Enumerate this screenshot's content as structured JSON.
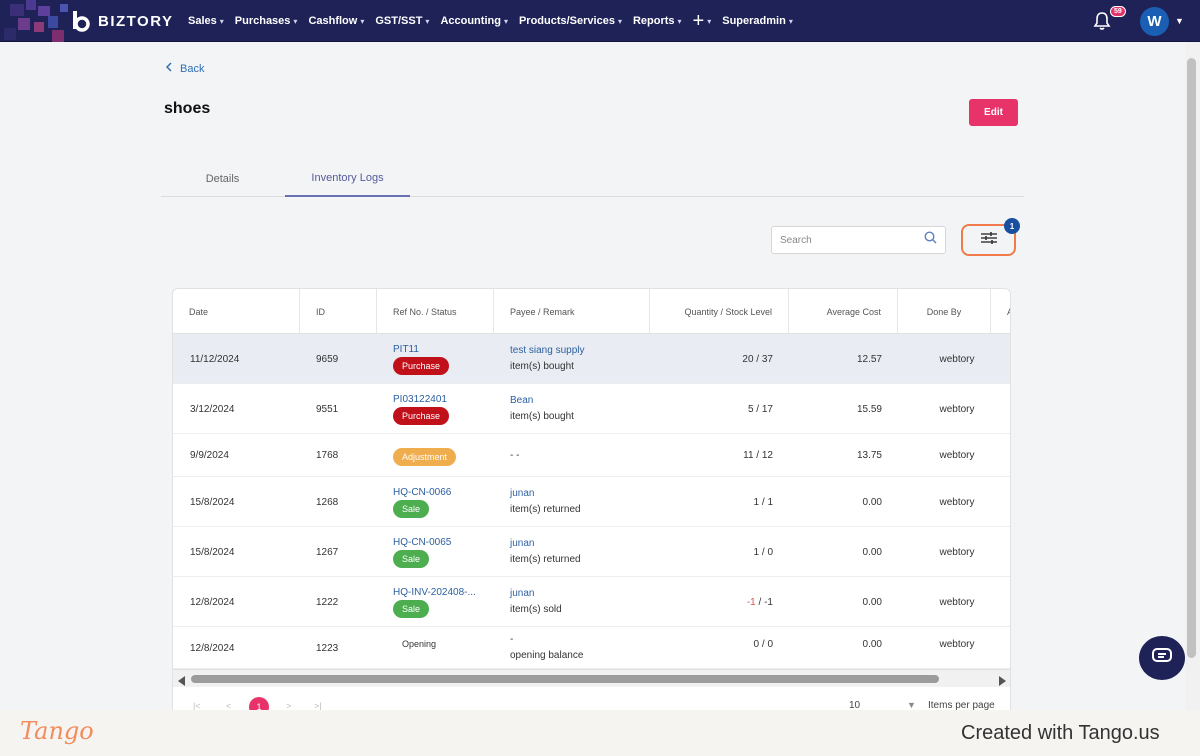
{
  "nav": {
    "brand": "BIZTORY",
    "menu": [
      {
        "label": "Sales"
      },
      {
        "label": "Purchases"
      },
      {
        "label": "Cashflow"
      },
      {
        "label": "GST/SST"
      },
      {
        "label": "Accounting"
      },
      {
        "label": "Products/Services"
      },
      {
        "label": "Reports"
      },
      {
        "label": "+"
      },
      {
        "label": "Superadmin"
      }
    ],
    "notification_count": "59",
    "avatar_initial": "W",
    "accent_color": "#1f2257"
  },
  "page": {
    "back_label": "Back",
    "title": "shoes",
    "edit_label": "Edit"
  },
  "tabs": [
    {
      "label": "Details",
      "active": false
    },
    {
      "label": "Inventory Logs",
      "active": true
    }
  ],
  "toolbar": {
    "search_placeholder": "Search",
    "filter_count": "1"
  },
  "table": {
    "columns": [
      "Date",
      "ID",
      "Ref No. / Status",
      "Payee / Remark",
      "Quantity / Stock Level",
      "Average Cost",
      "Done By",
      "A"
    ],
    "rows": [
      {
        "date": "11/12/2024",
        "id": "9659",
        "ref": "PIT11",
        "status": "Purchase",
        "payee": "test siang supply",
        "remark": "item(s) bought",
        "qty": "20",
        "stock": "37",
        "cost": "12.57",
        "by": "webtory"
      },
      {
        "date": "3/12/2024",
        "id": "9551",
        "ref": "PI03122401",
        "status": "Purchase",
        "payee": "Bean",
        "remark": "item(s) bought",
        "qty": "5",
        "stock": "17",
        "cost": "15.59",
        "by": "webtory"
      },
      {
        "date": "9/9/2024",
        "id": "1768",
        "ref": "",
        "status": "Adjustment",
        "payee": "",
        "remark": "- -",
        "qty": "11",
        "stock": "12",
        "cost": "13.75",
        "by": "webtory"
      },
      {
        "date": "15/8/2024",
        "id": "1268",
        "ref": "HQ-CN-0066",
        "status": "Sale",
        "payee": "junan",
        "remark": "item(s) returned",
        "qty": "1",
        "stock": "1",
        "cost": "0.00",
        "by": "webtory"
      },
      {
        "date": "15/8/2024",
        "id": "1267",
        "ref": "HQ-CN-0065",
        "status": "Sale",
        "payee": "junan",
        "remark": "item(s) returned",
        "qty": "1",
        "stock": "0",
        "cost": "0.00",
        "by": "webtory"
      },
      {
        "date": "12/8/2024",
        "id": "1222",
        "ref": "HQ-INV-202408-...",
        "status": "Sale",
        "payee": "junan",
        "remark": "item(s) sold",
        "qty": "-1",
        "stock": "-1",
        "cost": "0.00",
        "by": "webtory"
      },
      {
        "date": "12/8/2024",
        "id": "1223",
        "ref": "",
        "status": "Opening",
        "payee": "-",
        "remark": "opening balance",
        "qty": "0",
        "stock": "0",
        "cost": "0.00",
        "by": "webtory"
      }
    ]
  },
  "pager": {
    "first": "|<",
    "prev": "<",
    "current_page": "1",
    "next": ">",
    "last": ">|",
    "per_page": "10",
    "per_page_label": "Items per page"
  },
  "footer": {
    "tango_logo": "Tango",
    "credit": "Created with Tango.us"
  }
}
